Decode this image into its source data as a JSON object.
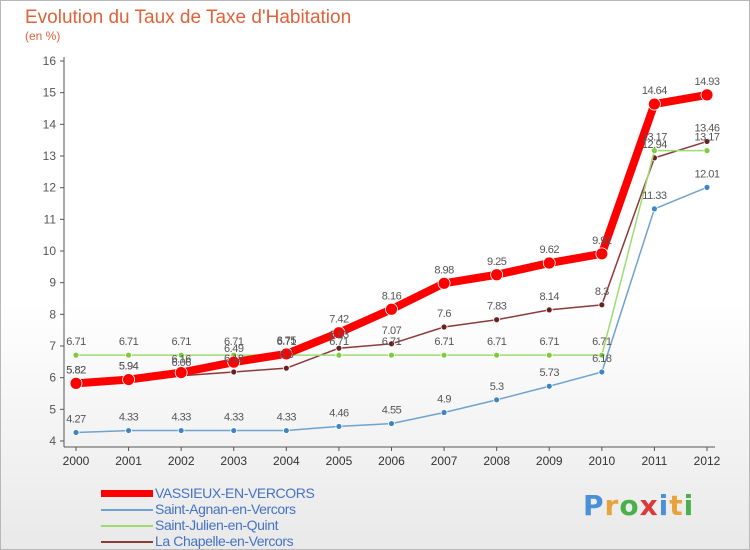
{
  "title": "Evolution du Taux de Taxe d'Habitation",
  "unit": "(en %)",
  "logo": {
    "text": "Proxiti",
    "colors": [
      "#4a90d9",
      "#e8a33a",
      "#4ab04a",
      "#d93a3a",
      "#4a90d9",
      "#e8a33a",
      "#4ab04a"
    ]
  },
  "chart_data": {
    "type": "line",
    "categories": [
      "2000",
      "2001",
      "2002",
      "2003",
      "2004",
      "2005",
      "2006",
      "2007",
      "2008",
      "2009",
      "2010",
      "2011",
      "2012"
    ],
    "ylim": [
      4,
      16
    ],
    "yticks": [
      4,
      5,
      6,
      7,
      8,
      9,
      10,
      11,
      12,
      13,
      14,
      15,
      16
    ],
    "grid": false,
    "legend_position": "bottom-left",
    "series": [
      {
        "name": "VASSIEUX-EN-VERCORS",
        "color": "#ff0000",
        "marker_color": "#ff0000",
        "width": 8,
        "values": [
          5.82,
          5.94,
          6.16,
          6.49,
          6.75,
          7.42,
          8.16,
          8.98,
          9.25,
          9.62,
          9.91,
          14.64,
          14.93
        ],
        "labels": [
          "5.82",
          "5.94",
          "6.16",
          "6.49",
          "6.75",
          "7.42",
          "8.16",
          "8.98",
          "9.25",
          "9.62",
          "9.91",
          "14.64",
          "14.93"
        ]
      },
      {
        "name": "Saint-Agnan-en-Vercors",
        "color": "#6fa3cf",
        "marker_color": "#3f85c3",
        "width": 1.5,
        "values": [
          4.27,
          4.33,
          4.33,
          4.33,
          4.33,
          4.46,
          4.55,
          4.9,
          5.3,
          5.73,
          6.18,
          11.33,
          12.01
        ],
        "labels": [
          "4.27",
          "4.33",
          "4.33",
          "4.33",
          "4.33",
          "4.46",
          "4.55",
          "4.9",
          "5.3",
          "5.73",
          "6.18",
          "11.33",
          "12.01"
        ]
      },
      {
        "name": "Saint-Julien-en-Quint",
        "color": "#9edb70",
        "marker_color": "#7ccc3c",
        "width": 1.5,
        "values": [
          6.71,
          6.71,
          6.71,
          6.71,
          6.71,
          6.71,
          6.71,
          6.71,
          6.71,
          6.71,
          6.71,
          13.17,
          13.17
        ],
        "labels": [
          "6.71",
          "6.71",
          "6.71",
          "6.71",
          "6.71",
          "6.71",
          "6.71",
          "6.71",
          "6.71",
          "6.71",
          "6.71",
          "13.17",
          "13.17"
        ]
      },
      {
        "name": "La Chapelle-en-Vercors",
        "color": "#8b3a3a",
        "marker_color": "#6b1f1f",
        "width": 1.5,
        "values": [
          5.82,
          5.94,
          6.06,
          6.18,
          6.3,
          6.93,
          7.07,
          7.6,
          7.83,
          8.14,
          8.3,
          12.94,
          13.46
        ],
        "labels": [
          "5.82",
          "5.94",
          "6.06",
          "6.18",
          "6.3",
          "6.93",
          "7.07",
          "7.6",
          "7.83",
          "8.14",
          "8.3",
          "12.94",
          "13.46"
        ]
      }
    ]
  }
}
